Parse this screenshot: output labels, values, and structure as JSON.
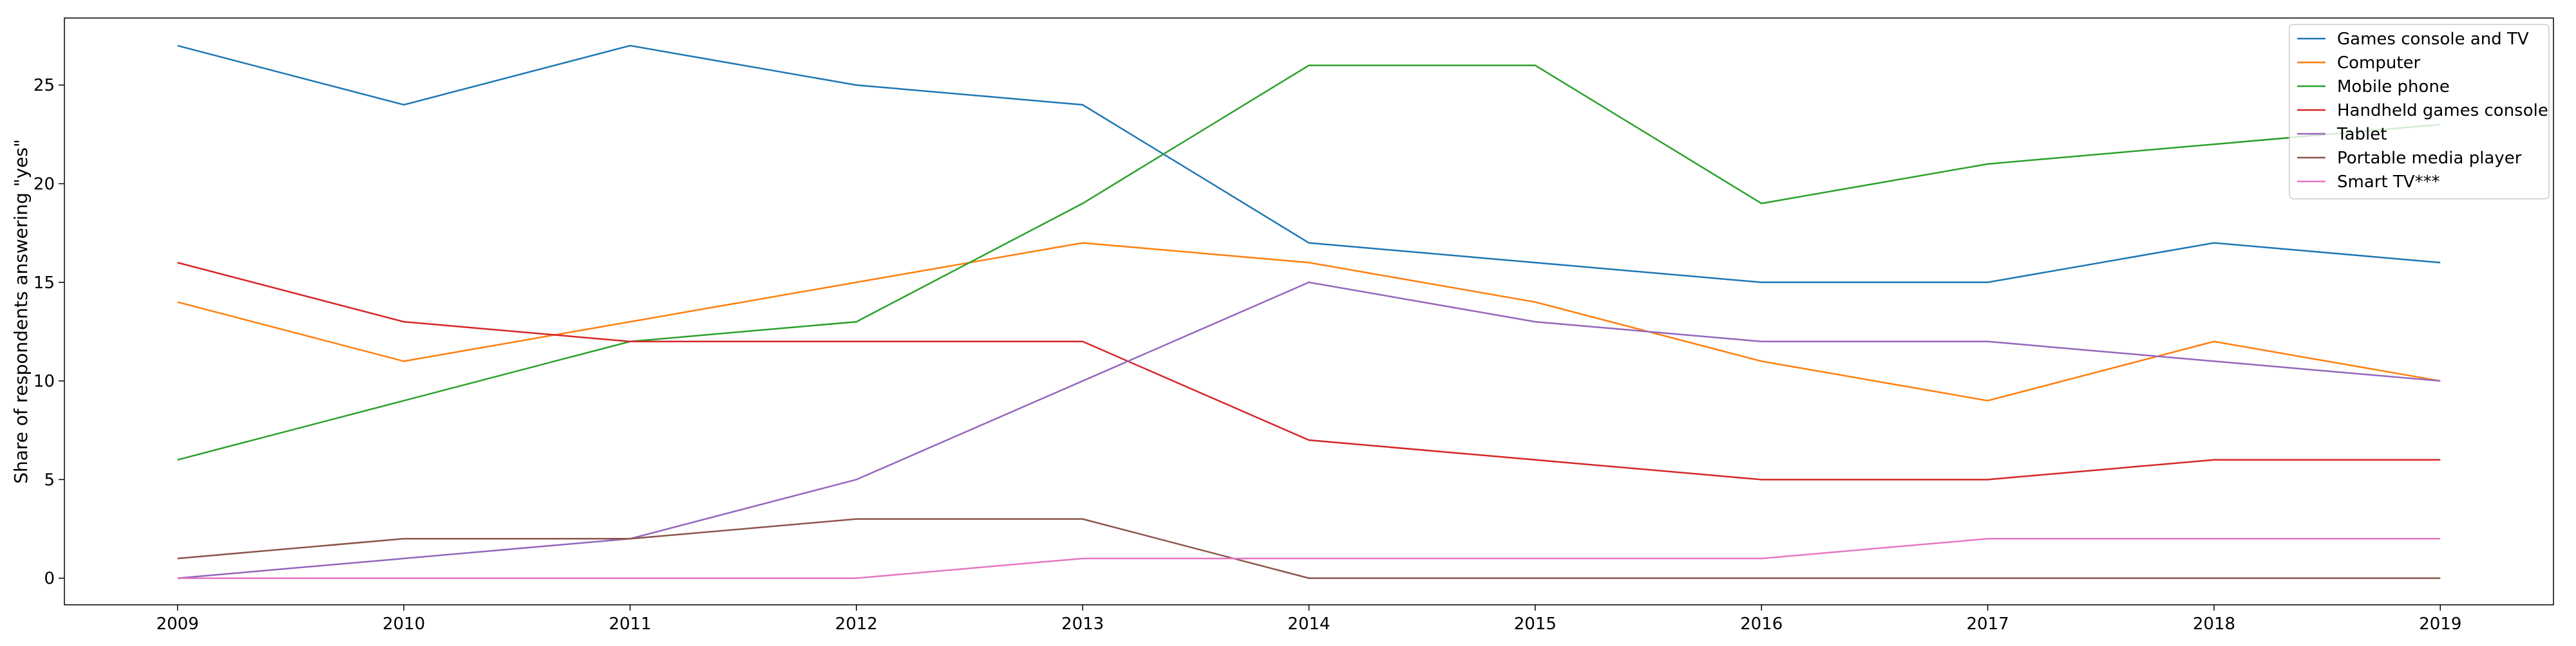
{
  "chart_data": {
    "type": "line",
    "title": "",
    "xlabel": "",
    "ylabel": "Share of respondents answering \"yes\"",
    "x": [
      2009,
      2010,
      2011,
      2012,
      2013,
      2014,
      2015,
      2016,
      2017,
      2018,
      2019
    ],
    "xlim": [
      2008.5,
      2019.5
    ],
    "ylim": [
      -1.35,
      28.4
    ],
    "y_ticks": [
      0,
      5,
      10,
      15,
      20,
      25
    ],
    "grid": false,
    "legend_position": "top-right",
    "series": [
      {
        "name": "Games console and TV",
        "color": "#1f77b4",
        "values": [
          27,
          24,
          27,
          25,
          24,
          17,
          16,
          15,
          15,
          17,
          16
        ]
      },
      {
        "name": "Computer",
        "color": "#ff7f0e",
        "values": [
          14,
          11,
          13,
          15,
          17,
          16,
          14,
          11,
          9,
          12,
          10
        ]
      },
      {
        "name": "Mobile phone",
        "color": "#2ca02c",
        "values": [
          6,
          9,
          12,
          13,
          19,
          26,
          26,
          19,
          21,
          22,
          23
        ]
      },
      {
        "name": "Handheld games console",
        "color": "#d62728",
        "values": [
          16,
          13,
          12,
          12,
          12,
          7,
          6,
          5,
          5,
          6,
          6
        ]
      },
      {
        "name": "Tablet",
        "color": "#9467bd",
        "values": [
          0,
          1,
          2,
          5,
          10,
          15,
          13,
          12,
          12,
          11,
          10
        ]
      },
      {
        "name": "Portable media player",
        "color": "#8c564b",
        "values": [
          1,
          2,
          2,
          3,
          3,
          0,
          0,
          0,
          0,
          0,
          0
        ]
      },
      {
        "name": "Smart TV***",
        "color": "#e377c2",
        "values": [
          0,
          0,
          0,
          0,
          1,
          1,
          1,
          1,
          2,
          2,
          2
        ]
      }
    ]
  }
}
